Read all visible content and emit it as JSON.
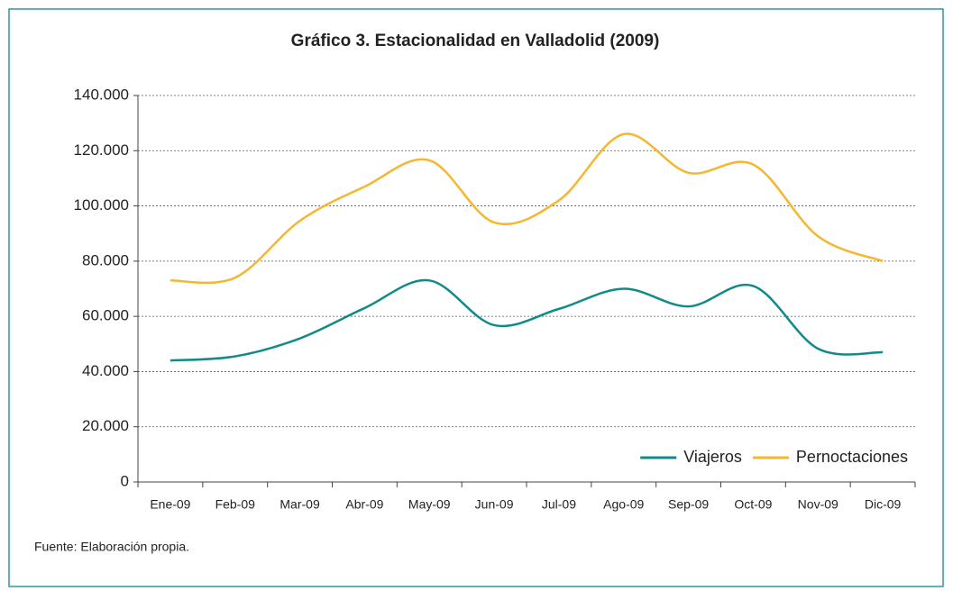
{
  "chart_data": {
    "type": "line",
    "title": "Gráfico 3. Estacionalidad en Valladolid (2009)",
    "categories": [
      "Ene-09",
      "Feb-09",
      "Mar-09",
      "Abr-09",
      "May-09",
      "Jun-09",
      "Jul-09",
      "Ago-09",
      "Sep-09",
      "Oct-09",
      "Nov-09",
      "Dic-09"
    ],
    "series": [
      {
        "name": "Viajeros",
        "color": "#138a8a",
        "values": [
          44000,
          45500,
          52000,
          63000,
          73000,
          56800,
          62700,
          70000,
          63600,
          71000,
          48300,
          47000
        ]
      },
      {
        "name": "Pernoctaciones",
        "color": "#f5b731",
        "values": [
          73000,
          74000,
          94600,
          107000,
          116500,
          94000,
          102000,
          126000,
          112000,
          115000,
          89000,
          80000
        ]
      }
    ],
    "ylim": [
      0,
      140000
    ],
    "yticks": [
      0,
      {
        "value": 20000,
        "label": "20.000"
      },
      {
        "value": 40000,
        "label": "40.000"
      },
      {
        "value": 60000,
        "label": "60.000"
      },
      {
        "value": 80000,
        "label": "80.000"
      },
      {
        "value": 100000,
        "label": "100.000"
      },
      {
        "value": 120000,
        "label": "120.000"
      },
      {
        "value": 140000,
        "label": "140.000"
      }
    ],
    "grid": true,
    "legend": "bottom-right",
    "source": "Fuente: Elaboración propia."
  }
}
